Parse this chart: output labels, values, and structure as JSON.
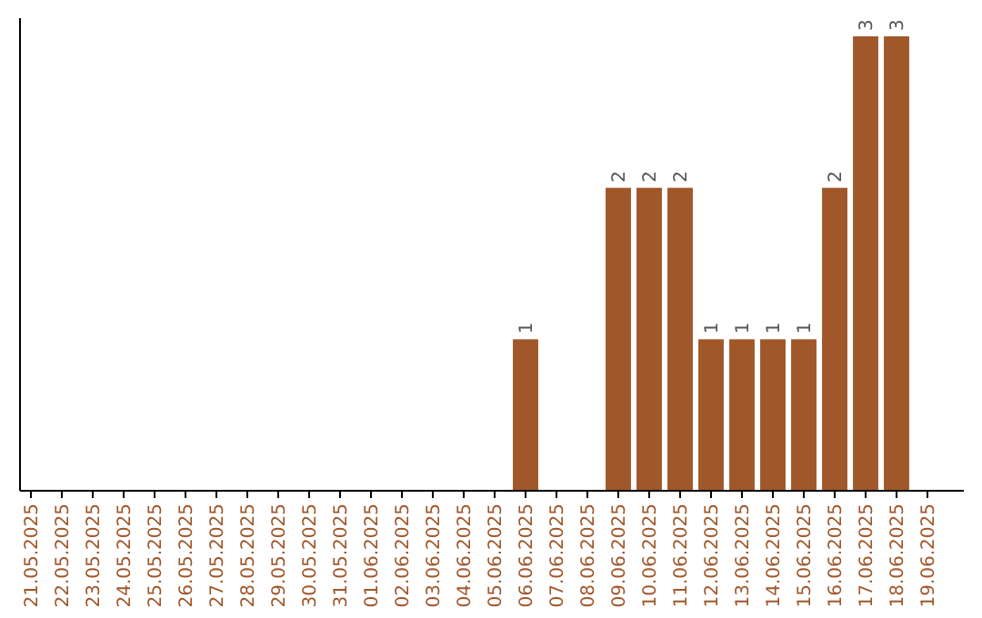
{
  "chart_data": {
    "type": "bar",
    "categories": [
      "21.05.2025",
      "22.05.2025",
      "23.05.2025",
      "24.05.2025",
      "25.05.2025",
      "26.05.2025",
      "27.05.2025",
      "28.05.2025",
      "29.05.2025",
      "30.05.2025",
      "31.05.2025",
      "01.06.2025",
      "02.06.2025",
      "03.06.2025",
      "04.06.2025",
      "05.06.2025",
      "06.06.2025",
      "07.06.2025",
      "08.06.2025",
      "09.06.2025",
      "10.06.2025",
      "11.06.2025",
      "12.06.2025",
      "13.06.2025",
      "14.06.2025",
      "15.06.2025",
      "16.06.2025",
      "17.06.2025",
      "18.06.2025",
      "19.06.2025"
    ],
    "values": [
      null,
      null,
      null,
      null,
      null,
      null,
      null,
      null,
      null,
      null,
      null,
      null,
      null,
      null,
      null,
      null,
      1,
      null,
      null,
      2,
      2,
      2,
      1,
      1,
      1,
      1,
      2,
      3,
      3,
      null
    ],
    "data_labels": true,
    "color": "#a0572a"
  }
}
